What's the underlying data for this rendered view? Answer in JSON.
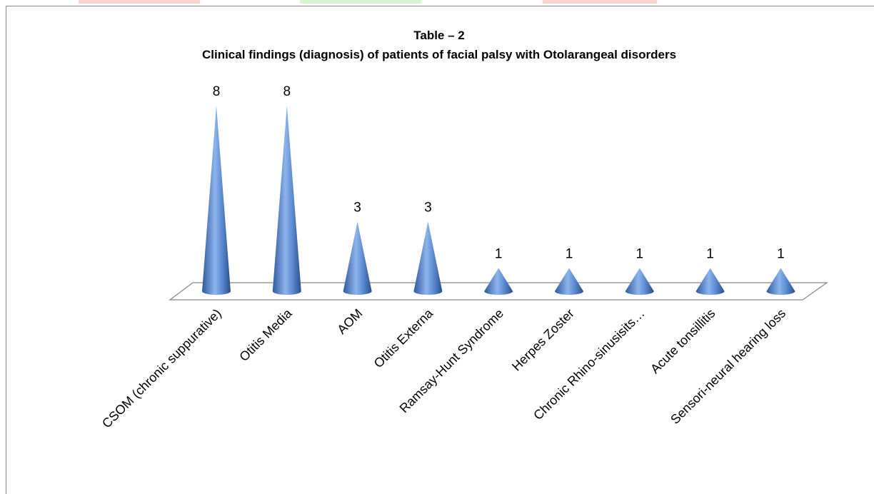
{
  "chart_data": {
    "type": "cone",
    "title": "Table – 2",
    "subtitle": "Clinical findings (diagnosis) of patients of facial palsy with Otolarangeal disorders",
    "categories": [
      "CSOM  (chronic suppurative)",
      "Otitis Media",
      "AOM",
      "Otitis Externa",
      "Ramsay-Hunt Syndrome",
      "Herpes Zoster",
      "Chronic Rhino-sinusisits…",
      "Acute tonsillitis",
      "Sensori-neural hearing loss"
    ],
    "values": [
      8,
      8,
      3,
      3,
      1,
      1,
      1,
      1,
      1
    ],
    "color": "#4f81bd"
  }
}
